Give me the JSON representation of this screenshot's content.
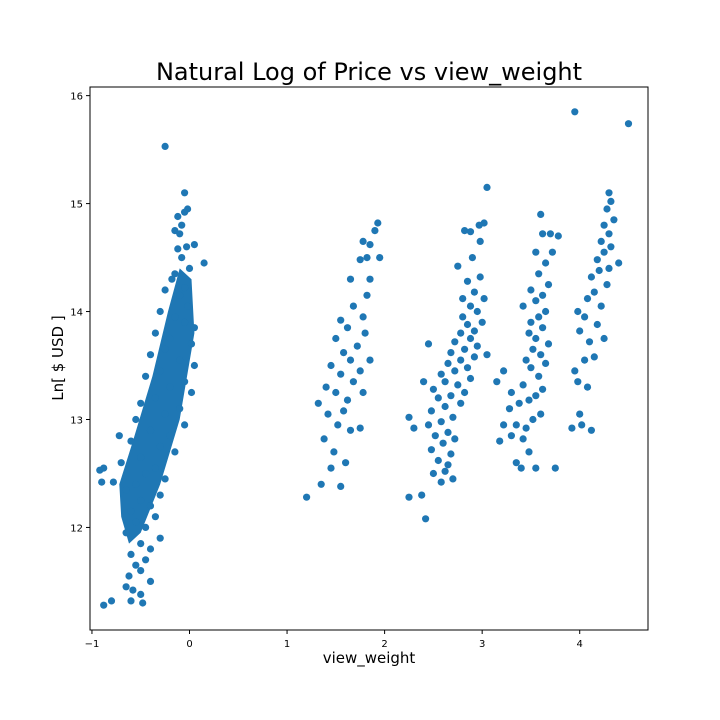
{
  "chart_data": {
    "type": "scatter",
    "title": "Natural Log of Price vs view_weight",
    "xlabel": "view_weight",
    "ylabel": "Ln[ $ USD ]",
    "xlim": [
      -1.02,
      4.7
    ],
    "ylim": [
      11.05,
      16.08
    ],
    "xticks": [
      -1,
      0,
      1,
      2,
      3,
      4
    ],
    "xtick_labels": [
      "−1",
      "0",
      "1",
      "2",
      "3",
      "4"
    ],
    "yticks": [
      12,
      13,
      14,
      15,
      16
    ],
    "ytick_labels": [
      "12",
      "13",
      "14",
      "15",
      "16"
    ],
    "grid": false,
    "legend": "none",
    "point_color": "#1f77b4",
    "series": [
      {
        "points": [
          [
            -0.25,
            15.53
          ],
          [
            -0.05,
            15.1
          ],
          [
            -0.02,
            14.95
          ],
          [
            -0.05,
            14.92
          ],
          [
            -0.12,
            14.88
          ],
          [
            -0.08,
            14.8
          ],
          [
            -0.15,
            14.75
          ],
          [
            -0.1,
            14.72
          ],
          [
            0.05,
            14.62
          ],
          [
            -0.03,
            14.6
          ],
          [
            -0.12,
            14.58
          ],
          [
            -0.08,
            14.5
          ],
          [
            0.15,
            14.45
          ],
          [
            0.0,
            14.4
          ],
          [
            -0.15,
            14.35
          ],
          [
            -0.18,
            14.3
          ],
          [
            -0.05,
            14.22
          ],
          [
            -0.25,
            14.2
          ],
          [
            -0.1,
            14.15
          ],
          [
            -0.02,
            14.05
          ],
          [
            -0.3,
            14.0
          ],
          [
            -0.15,
            13.95
          ],
          [
            -0.05,
            13.9
          ],
          [
            0.05,
            13.85
          ],
          [
            -0.35,
            13.8
          ],
          [
            -0.2,
            13.75
          ],
          [
            0.02,
            13.7
          ],
          [
            -0.25,
            13.65
          ],
          [
            -0.4,
            13.6
          ],
          [
            -0.1,
            13.55
          ],
          [
            0.05,
            13.5
          ],
          [
            -0.3,
            13.45
          ],
          [
            -0.45,
            13.4
          ],
          [
            -0.05,
            13.35
          ],
          [
            -0.2,
            13.3
          ],
          [
            0.02,
            13.25
          ],
          [
            -0.35,
            13.2
          ],
          [
            -0.5,
            13.15
          ],
          [
            -0.1,
            13.1
          ],
          [
            -0.25,
            13.05
          ],
          [
            -0.55,
            13.0
          ],
          [
            -0.05,
            12.95
          ],
          [
            -0.4,
            12.9
          ],
          [
            -0.2,
            12.85
          ],
          [
            -0.6,
            12.8
          ],
          [
            -0.3,
            12.75
          ],
          [
            -0.15,
            12.7
          ],
          [
            -0.5,
            12.65
          ],
          [
            -0.7,
            12.6
          ],
          [
            -0.35,
            12.55
          ],
          [
            -0.92,
            12.53
          ],
          [
            -0.88,
            12.55
          ],
          [
            -0.78,
            12.42
          ],
          [
            -0.9,
            12.42
          ],
          [
            -0.45,
            12.5
          ],
          [
            -0.25,
            12.45
          ],
          [
            -0.55,
            12.4
          ],
          [
            -0.65,
            12.35
          ],
          [
            -0.3,
            12.3
          ],
          [
            -0.5,
            12.25
          ],
          [
            -0.4,
            12.2
          ],
          [
            -0.6,
            12.15
          ],
          [
            -0.35,
            12.1
          ],
          [
            -0.55,
            12.05
          ],
          [
            -0.45,
            12.0
          ],
          [
            -0.65,
            11.95
          ],
          [
            -0.3,
            11.9
          ],
          [
            -0.5,
            11.85
          ],
          [
            -0.4,
            11.8
          ],
          [
            -0.6,
            11.75
          ],
          [
            -0.45,
            11.7
          ],
          [
            -0.55,
            11.65
          ],
          [
            -0.5,
            11.6
          ],
          [
            -0.62,
            11.55
          ],
          [
            -0.4,
            11.5
          ],
          [
            -0.58,
            11.42
          ],
          [
            -0.65,
            11.45
          ],
          [
            -0.5,
            11.38
          ],
          [
            -0.48,
            11.3
          ],
          [
            -0.6,
            11.32
          ],
          [
            -0.8,
            11.32
          ],
          [
            -0.88,
            11.28
          ],
          [
            -0.72,
            12.85
          ],
          [
            1.2,
            12.28
          ],
          [
            1.35,
            12.4
          ],
          [
            1.55,
            12.38
          ],
          [
            1.45,
            12.55
          ],
          [
            1.6,
            12.6
          ],
          [
            1.48,
            12.7
          ],
          [
            1.38,
            12.82
          ],
          [
            1.65,
            12.9
          ],
          [
            1.75,
            12.92
          ],
          [
            1.52,
            12.95
          ],
          [
            1.42,
            13.05
          ],
          [
            1.58,
            13.08
          ],
          [
            1.32,
            13.15
          ],
          [
            1.62,
            13.18
          ],
          [
            1.5,
            13.25
          ],
          [
            1.78,
            13.25
          ],
          [
            1.4,
            13.3
          ],
          [
            1.68,
            13.35
          ],
          [
            1.55,
            13.42
          ],
          [
            1.75,
            13.45
          ],
          [
            1.45,
            13.5
          ],
          [
            1.65,
            13.55
          ],
          [
            1.85,
            13.55
          ],
          [
            1.58,
            13.62
          ],
          [
            1.72,
            13.68
          ],
          [
            1.5,
            13.75
          ],
          [
            1.8,
            13.8
          ],
          [
            1.62,
            13.85
          ],
          [
            1.55,
            13.92
          ],
          [
            1.78,
            13.95
          ],
          [
            1.68,
            14.05
          ],
          [
            1.82,
            14.15
          ],
          [
            1.65,
            14.3
          ],
          [
            1.85,
            14.3
          ],
          [
            1.75,
            14.48
          ],
          [
            1.82,
            14.5
          ],
          [
            1.95,
            14.5
          ],
          [
            1.78,
            14.65
          ],
          [
            1.85,
            14.62
          ],
          [
            1.9,
            14.75
          ],
          [
            1.93,
            14.82
          ],
          [
            2.25,
            12.28
          ],
          [
            2.42,
            12.08
          ],
          [
            2.38,
            12.3
          ],
          [
            2.58,
            12.42
          ],
          [
            2.5,
            12.5
          ],
          [
            2.62,
            12.52
          ],
          [
            2.7,
            12.45
          ],
          [
            2.65,
            12.58
          ],
          [
            2.55,
            12.62
          ],
          [
            2.68,
            12.68
          ],
          [
            2.48,
            12.72
          ],
          [
            2.6,
            12.78
          ],
          [
            2.72,
            12.82
          ],
          [
            2.52,
            12.85
          ],
          [
            2.65,
            12.88
          ],
          [
            2.3,
            12.92
          ],
          [
            2.45,
            12.95
          ],
          [
            2.58,
            12.98
          ],
          [
            2.25,
            13.02
          ],
          [
            2.7,
            13.02
          ],
          [
            2.48,
            13.08
          ],
          [
            2.62,
            13.12
          ],
          [
            2.78,
            13.15
          ],
          [
            2.55,
            13.2
          ],
          [
            2.68,
            13.22
          ],
          [
            2.82,
            13.25
          ],
          [
            2.5,
            13.28
          ],
          [
            2.75,
            13.32
          ],
          [
            2.62,
            13.35
          ],
          [
            2.88,
            13.38
          ],
          [
            2.58,
            13.42
          ],
          [
            2.72,
            13.45
          ],
          [
            2.85,
            13.48
          ],
          [
            2.65,
            13.52
          ],
          [
            2.78,
            13.55
          ],
          [
            2.92,
            13.58
          ],
          [
            2.68,
            13.62
          ],
          [
            2.82,
            13.65
          ],
          [
            2.95,
            13.68
          ],
          [
            2.72,
            13.72
          ],
          [
            2.88,
            13.75
          ],
          [
            2.78,
            13.8
          ],
          [
            2.92,
            13.82
          ],
          [
            2.85,
            13.88
          ],
          [
            3.0,
            13.9
          ],
          [
            2.8,
            13.95
          ],
          [
            2.95,
            14.0
          ],
          [
            2.88,
            14.05
          ],
          [
            2.8,
            14.12
          ],
          [
            2.92,
            14.18
          ],
          [
            3.02,
            14.12
          ],
          [
            2.85,
            14.28
          ],
          [
            2.98,
            14.32
          ],
          [
            2.75,
            14.42
          ],
          [
            2.9,
            14.5
          ],
          [
            2.82,
            14.75
          ],
          [
            2.88,
            14.74
          ],
          [
            2.97,
            14.8
          ],
          [
            3.02,
            14.82
          ],
          [
            2.98,
            14.65
          ],
          [
            3.05,
            15.15
          ],
          [
            3.05,
            13.6
          ],
          [
            2.45,
            13.7
          ],
          [
            2.4,
            13.35
          ],
          [
            3.15,
            13.35
          ],
          [
            3.22,
            13.45
          ],
          [
            3.3,
            13.25
          ],
          [
            3.38,
            13.15
          ],
          [
            3.28,
            13.1
          ],
          [
            3.35,
            12.95
          ],
          [
            3.42,
            12.82
          ],
          [
            3.18,
            12.8
          ],
          [
            3.48,
            12.7
          ],
          [
            3.35,
            12.6
          ],
          [
            3.4,
            12.55
          ],
          [
            3.55,
            12.55
          ],
          [
            3.75,
            12.55
          ],
          [
            3.45,
            12.92
          ],
          [
            3.52,
            13.0
          ],
          [
            3.6,
            13.05
          ],
          [
            3.48,
            13.18
          ],
          [
            3.55,
            13.22
          ],
          [
            3.62,
            13.28
          ],
          [
            3.42,
            13.32
          ],
          [
            3.58,
            13.4
          ],
          [
            3.5,
            13.48
          ],
          [
            3.65,
            13.52
          ],
          [
            3.45,
            13.55
          ],
          [
            3.6,
            13.6
          ],
          [
            3.52,
            13.65
          ],
          [
            3.68,
            13.7
          ],
          [
            3.55,
            13.75
          ],
          [
            3.48,
            13.8
          ],
          [
            3.62,
            13.85
          ],
          [
            3.5,
            13.9
          ],
          [
            3.58,
            13.95
          ],
          [
            3.65,
            14.0
          ],
          [
            3.42,
            14.05
          ],
          [
            3.55,
            14.1
          ],
          [
            3.62,
            14.15
          ],
          [
            3.5,
            14.2
          ],
          [
            3.68,
            14.25
          ],
          [
            3.58,
            14.35
          ],
          [
            3.65,
            14.45
          ],
          [
            3.55,
            14.55
          ],
          [
            3.72,
            14.55
          ],
          [
            3.62,
            14.72
          ],
          [
            3.7,
            14.72
          ],
          [
            3.6,
            14.9
          ],
          [
            3.78,
            14.7
          ],
          [
            3.3,
            12.85
          ],
          [
            3.22,
            12.95
          ],
          [
            3.92,
            12.92
          ],
          [
            4.02,
            12.95
          ],
          [
            4.12,
            12.9
          ],
          [
            4.0,
            13.05
          ],
          [
            3.98,
            13.35
          ],
          [
            4.08,
            13.3
          ],
          [
            3.95,
            13.45
          ],
          [
            4.05,
            13.55
          ],
          [
            4.15,
            13.58
          ],
          [
            4.1,
            13.72
          ],
          [
            4.25,
            13.75
          ],
          [
            4.0,
            13.82
          ],
          [
            4.18,
            13.88
          ],
          [
            4.05,
            13.95
          ],
          [
            3.98,
            14.0
          ],
          [
            4.22,
            14.05
          ],
          [
            4.08,
            14.12
          ],
          [
            4.15,
            14.18
          ],
          [
            4.28,
            14.25
          ],
          [
            4.12,
            14.32
          ],
          [
            4.2,
            14.38
          ],
          [
            4.3,
            14.4
          ],
          [
            4.18,
            14.48
          ],
          [
            4.25,
            14.55
          ],
          [
            4.32,
            14.6
          ],
          [
            4.22,
            14.65
          ],
          [
            4.3,
            14.72
          ],
          [
            4.25,
            14.8
          ],
          [
            4.35,
            14.85
          ],
          [
            4.28,
            14.95
          ],
          [
            4.32,
            15.02
          ],
          [
            4.3,
            15.1
          ],
          [
            4.4,
            14.45
          ],
          [
            3.95,
            15.85
          ],
          [
            4.5,
            15.74
          ]
        ]
      }
    ]
  }
}
